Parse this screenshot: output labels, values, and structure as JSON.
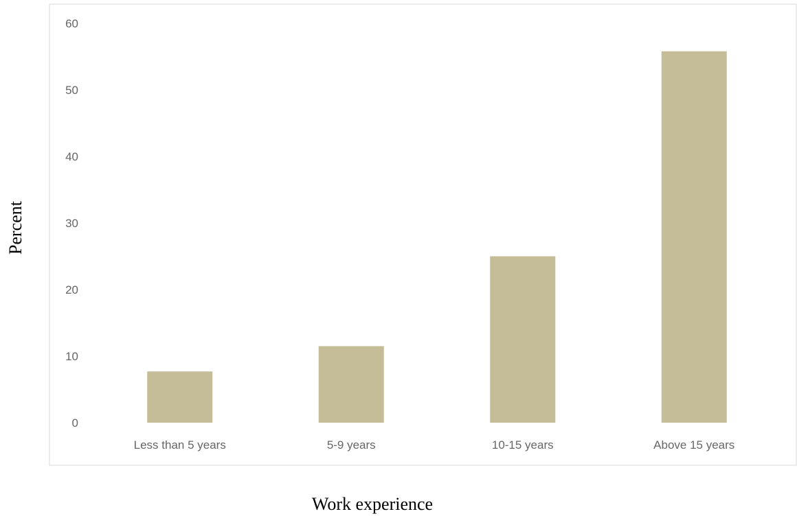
{
  "chart_data": {
    "type": "bar",
    "categories": [
      "Less than 5 years",
      "5-9 years",
      "10-15 years",
      "Above 15 years"
    ],
    "values": [
      7.7,
      11.5,
      25.0,
      55.8
    ],
    "xlabel": "Work experience",
    "ylabel": "Percent",
    "ylim": [
      0,
      60
    ],
    "yticks": [
      0,
      10,
      20,
      30,
      40,
      50,
      60
    ],
    "grid": false,
    "legend": "none",
    "bar_color": "#c5bd97",
    "frame_color": "#d9d9d9"
  }
}
